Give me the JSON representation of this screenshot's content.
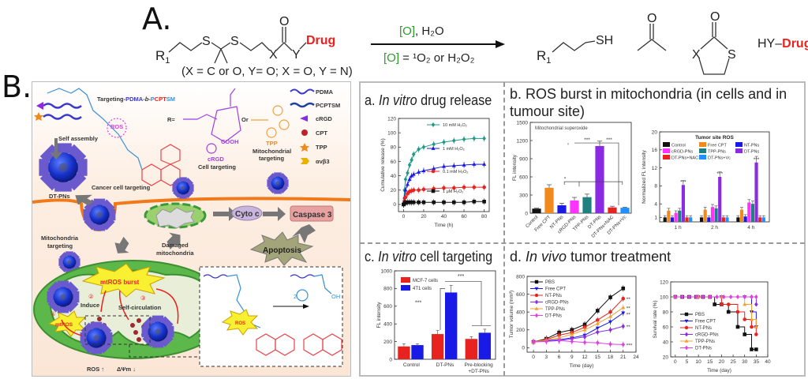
{
  "figure": {
    "part_a_label": "A.",
    "part_b_label": "B."
  },
  "reaction": {
    "r1": "R",
    "r1_sub": "1",
    "s1": "S",
    "s2": "S",
    "x": "X",
    "o": "O",
    "y": "Y",
    "drug": "Drug",
    "condition_note": "(X = C or O, Y= O; X = O, Y = N)",
    "arrow_top_o": "[O]",
    "arrow_top_rest": ", H₂O",
    "arrow_bottom_o": "[O]",
    "arrow_bottom_rest": " = ¹O₂ or H₂O₂",
    "product1_r": "R",
    "product1_sub": "1",
    "product1_sh": "SH",
    "acetone_o": "O",
    "dithiolanone_o": "O",
    "dithiolanone_x": "X",
    "dithiolanone_s": "S",
    "product3_hy": "HY",
    "product3_drug": "Drug",
    "colors": {
      "drug": "#e8231f",
      "oxidant": "#2e9a2e"
    }
  },
  "schematic": {
    "polymer_title_prefix": "Targeting-",
    "polymer_title_pdma": "PDMA",
    "polymer_title_b": "-b-",
    "polymer_title_p": "P",
    "polymer_title_cpt": "CPT",
    "polymer_title_sm": "SM",
    "legend": [
      "PDMA",
      "PCPTSM",
      "cRGD",
      "CPT",
      "TPP",
      "αvβ3"
    ],
    "ros_label": "ROS",
    "r_equals": "R=",
    "or_label": "Or",
    "crgd_label": "cRGD",
    "cell_targeting": "Cell targeting",
    "tpp_label": "TPP",
    "mito_targeting_1": "Mitochondrial",
    "mito_targeting_2": "targeting",
    "self_assembly": "Self assembly",
    "dt_pns": "DT-PNs",
    "cancer_cell_targeting": "Cancer cell targeting",
    "cyto_c": "Cyto c",
    "caspase_3": "Caspase 3",
    "apoptosis": "Apoptosis",
    "damaged_1": "Damaged",
    "damaged_2": "mitochondria",
    "mito_targeting_label_1": "Mitochondria",
    "mito_targeting_label_2": "targeting",
    "mtros_burst": "mtROS burst",
    "induce": "Induce",
    "self_circulation": "Self-circulation",
    "mtros": "mtROS",
    "step1": "①",
    "step2": "②",
    "step3": "③",
    "ros_up": "ROS ↑",
    "delta_psi_down": "ΔΨm ↓",
    "inset_ros": "ROS",
    "inset_thiolane_prefix": "2",
    "inset_oh": "OH",
    "cooh": "COOH"
  },
  "panels": {
    "a": {
      "prefix": "a. ",
      "italic": "In vitro",
      "rest": " drug release"
    },
    "b": {
      "line1": "b. ROS burst in mitochondria (in cells and in",
      "line2": "tumour site)"
    },
    "c": {
      "prefix": "c. ",
      "italic": "In vitro",
      "rest": " cell targeting"
    },
    "d": {
      "prefix": "d. ",
      "italic": "In vivo",
      "rest": " tumor treatment"
    }
  },
  "chart_data": [
    {
      "id": "a",
      "type": "line",
      "title": "",
      "xlabel": "Time (h)",
      "ylabel": "Cumulative release (%)",
      "xlim": [
        -5,
        85
      ],
      "ylim": [
        -10,
        120
      ],
      "xticks": [
        0,
        20,
        40,
        60,
        80
      ],
      "yticks": [
        0,
        20,
        40,
        60,
        80,
        100,
        120
      ],
      "x": [
        0,
        1,
        2,
        4,
        6,
        8,
        10,
        15,
        20,
        30,
        40,
        50,
        60,
        70,
        80
      ],
      "legend_position": "inline-right",
      "series": [
        {
          "name": "10 mM H₂O₂",
          "color": "#1f9a86",
          "marker": "diamond",
          "values": [
            0,
            20,
            35,
            44,
            55,
            62,
            70,
            77,
            80,
            84,
            87,
            89,
            91,
            92,
            92
          ]
        },
        {
          "name": "1 mM H₂O₂",
          "color": "#1a1ae6",
          "marker": "triangle",
          "values": [
            0,
            10,
            20,
            28,
            35,
            40,
            42,
            45,
            47,
            50,
            53,
            54,
            55,
            56,
            56
          ]
        },
        {
          "name": "0.1 mM H₂O₂",
          "color": "#e8231f",
          "marker": "circle",
          "values": [
            0,
            5,
            10,
            15,
            18,
            19,
            20,
            20,
            21,
            22,
            23,
            23,
            24,
            24,
            24
          ]
        },
        {
          "name": "1 μM H₂O₂",
          "color": "#111111",
          "marker": "square",
          "values": [
            0,
            2,
            2,
            3,
            3,
            3,
            3,
            3,
            3,
            3,
            3,
            3,
            3,
            4,
            4
          ]
        }
      ]
    },
    {
      "id": "b1",
      "type": "bar",
      "title": "",
      "annotation": "Mitochondrial superoxide",
      "xlabel": "",
      "ylabel": "FL intensity",
      "ylim": [
        0,
        1500
      ],
      "yticks": [
        0,
        300,
        600,
        900,
        1200,
        1500
      ],
      "categories": [
        "Control",
        "Free CPT",
        "NT-PNs",
        "cRGD-PNs",
        "TPP-PNs",
        "DT-PNs",
        "DT-PNs+NAC",
        "DT-PNs+Vc"
      ],
      "values": [
        75,
        420,
        130,
        210,
        265,
        1110,
        95,
        90
      ],
      "errors": [
        8,
        50,
        35,
        50,
        50,
        80,
        20,
        10
      ],
      "colors": [
        "#111111",
        "#f08a1c",
        "#1a1ae6",
        "#ff33ff",
        "#1e8080",
        "#8a2be2",
        "#e8231f",
        "#1e90ff"
      ],
      "significance": [
        "*",
        "***",
        "***"
      ]
    },
    {
      "id": "b2",
      "type": "bar",
      "title": "Tumor site ROS",
      "xlabel": "",
      "ylabel": "Normalized FL intensity",
      "ylim": [
        0,
        20
      ],
      "yticks": [
        1,
        4,
        8,
        12,
        16,
        20
      ],
      "categories": [
        "1 h",
        "2 h",
        "4 h"
      ],
      "legend_position": "top",
      "series": [
        {
          "name": "Control",
          "color": "#111111",
          "values": [
            1,
            1,
            1
          ]
        },
        {
          "name": "Free CPT",
          "color": "#f08a1c",
          "values": [
            2.5,
            2.7,
            2.7
          ]
        },
        {
          "name": "NT-PNs",
          "color": "#1a1ae6",
          "values": [
            1,
            1,
            1.2
          ]
        },
        {
          "name": "cRGD-PNs",
          "color": "#ff33ff",
          "values": [
            2,
            3.3,
            4.3
          ]
        },
        {
          "name": "TPP-PNs",
          "color": "#1e8080",
          "values": [
            2.5,
            3,
            4
          ]
        },
        {
          "name": "DT-PNs",
          "color": "#8a2be2",
          "values": [
            8.2,
            10,
            13.2
          ]
        },
        {
          "name": "DT-PNs+NAC",
          "color": "#e8231f",
          "values": [
            1,
            1,
            1
          ]
        },
        {
          "name": "DT-PNs+Vc",
          "color": "#1e90ff",
          "values": [
            1,
            1,
            1
          ]
        }
      ],
      "significance": [
        "***",
        "***",
        "***"
      ]
    },
    {
      "id": "c",
      "type": "bar",
      "title": "",
      "xlabel": "",
      "ylabel": "FL intensity",
      "ylim": [
        0,
        1000
      ],
      "yticks": [
        0,
        200,
        400,
        600,
        800,
        1000
      ],
      "categories": [
        "Control",
        "DT-PNs",
        "Pre-blocking +DT-PNs"
      ],
      "legend_position": "top-left",
      "series": [
        {
          "name": "MCF-7 cells",
          "color": "#e8231f",
          "values": [
            145,
            285,
            230
          ],
          "errors": [
            30,
            40,
            25
          ]
        },
        {
          "name": "4T1 cells",
          "color": "#1a1ae6",
          "values": [
            160,
            755,
            300
          ],
          "errors": [
            15,
            80,
            40
          ]
        }
      ],
      "significance": [
        "***",
        "***"
      ]
    },
    {
      "id": "d1",
      "type": "line",
      "title": "",
      "xlabel": "Time (day)",
      "ylabel": "Tumor volume (mm³)",
      "xlim": [
        -1.5,
        24
      ],
      "ylim": [
        -50,
        800
      ],
      "xticks": [
        0,
        3,
        6,
        9,
        12,
        15,
        18,
        21,
        24
      ],
      "yticks": [
        0,
        200,
        400,
        600,
        800
      ],
      "x": [
        0,
        3,
        6,
        9,
        12,
        15,
        18,
        21
      ],
      "legend_position": "top-left",
      "series": [
        {
          "name": "PBS",
          "color": "#111111",
          "marker": "square",
          "values": [
            65,
            100,
            170,
            200,
            260,
            415,
            565,
            665
          ]
        },
        {
          "name": "Free CPT",
          "color": "#1a1ae6",
          "marker": "triangle-down",
          "values": [
            65,
            80,
            90,
            110,
            140,
            220,
            290,
            390
          ]
        },
        {
          "name": "NT-PNs",
          "color": "#e8231f",
          "marker": "circle",
          "values": [
            65,
            90,
            140,
            170,
            230,
            310,
            400,
            550
          ]
        },
        {
          "name": "cRGD-PNs",
          "color": "#8a2be2",
          "marker": "diamond",
          "values": [
            65,
            75,
            80,
            100,
            120,
            175,
            200,
            240
          ]
        },
        {
          "name": "TPP-PNs",
          "color": "#f5a030",
          "marker": "triangle",
          "values": [
            65,
            85,
            110,
            150,
            200,
            270,
            350,
            450
          ]
        },
        {
          "name": "DT-PNs",
          "color": "#e040e0",
          "marker": "diamond",
          "values": [
            65,
            70,
            80,
            70,
            60,
            55,
            40,
            35
          ]
        }
      ],
      "end_annotations": [
        "**",
        "**",
        "**",
        "**",
        "***"
      ]
    },
    {
      "id": "d2",
      "type": "line",
      "step": true,
      "title": "",
      "xlabel": "Time (day)",
      "ylabel": "Survival rate (%)",
      "xlim": [
        -2,
        40
      ],
      "ylim": [
        20,
        120
      ],
      "xticks": [
        0,
        5,
        10,
        15,
        20,
        25,
        30,
        35,
        40
      ],
      "yticks": [
        20,
        40,
        60,
        80,
        100,
        120
      ],
      "legend_position": "bottom-left",
      "series": [
        {
          "name": "PBS",
          "color": "#111111",
          "marker": "square",
          "points": [
            [
              0,
              100
            ],
            [
              3,
              100
            ],
            [
              6,
              100
            ],
            [
              9,
              100
            ],
            [
              12,
              100
            ],
            [
              15,
              100
            ],
            [
              17,
              90
            ],
            [
              20,
              90
            ],
            [
              23,
              80
            ],
            [
              27,
              60
            ],
            [
              30,
              50
            ],
            [
              33,
              30
            ],
            [
              35,
              30
            ]
          ]
        },
        {
          "name": "Free CPT",
          "color": "#1a1ae6",
          "marker": "triangle-down",
          "points": [
            [
              0,
              100
            ],
            [
              10,
              100
            ],
            [
              20,
              100
            ],
            [
              30,
              100
            ],
            [
              33,
              80
            ],
            [
              35,
              60
            ]
          ]
        },
        {
          "name": "NT-PNs",
          "color": "#e8231f",
          "marker": "circle",
          "points": [
            [
              0,
              100
            ],
            [
              10,
              100
            ],
            [
              15,
              100
            ],
            [
              20,
              90
            ],
            [
              23,
              90
            ],
            [
              27,
              80
            ],
            [
              30,
              70
            ],
            [
              33,
              60
            ],
            [
              35,
              50
            ]
          ]
        },
        {
          "name": "cRGD-PNs",
          "color": "#8a2be2",
          "marker": "diamond",
          "points": [
            [
              0,
              100
            ],
            [
              10,
              100
            ],
            [
              20,
              100
            ],
            [
              30,
              100
            ],
            [
              33,
              100
            ],
            [
              35,
              90
            ]
          ]
        },
        {
          "name": "TPP-PNs",
          "color": "#f5a030",
          "marker": "triangle",
          "points": [
            [
              0,
              100
            ],
            [
              10,
              100
            ],
            [
              20,
              100
            ],
            [
              30,
              90
            ],
            [
              33,
              70
            ],
            [
              35,
              60
            ]
          ]
        },
        {
          "name": "DT-PNs",
          "color": "#e040e0",
          "marker": "diamond",
          "points": [
            [
              0,
              100
            ],
            [
              3,
              100
            ],
            [
              6,
              100
            ],
            [
              9,
              100
            ],
            [
              12,
              100
            ],
            [
              15,
              100
            ],
            [
              18,
              100
            ],
            [
              21,
              100
            ],
            [
              24,
              100
            ],
            [
              27,
              100
            ],
            [
              30,
              100
            ],
            [
              33,
              100
            ],
            [
              35,
              100
            ]
          ]
        }
      ]
    }
  ]
}
